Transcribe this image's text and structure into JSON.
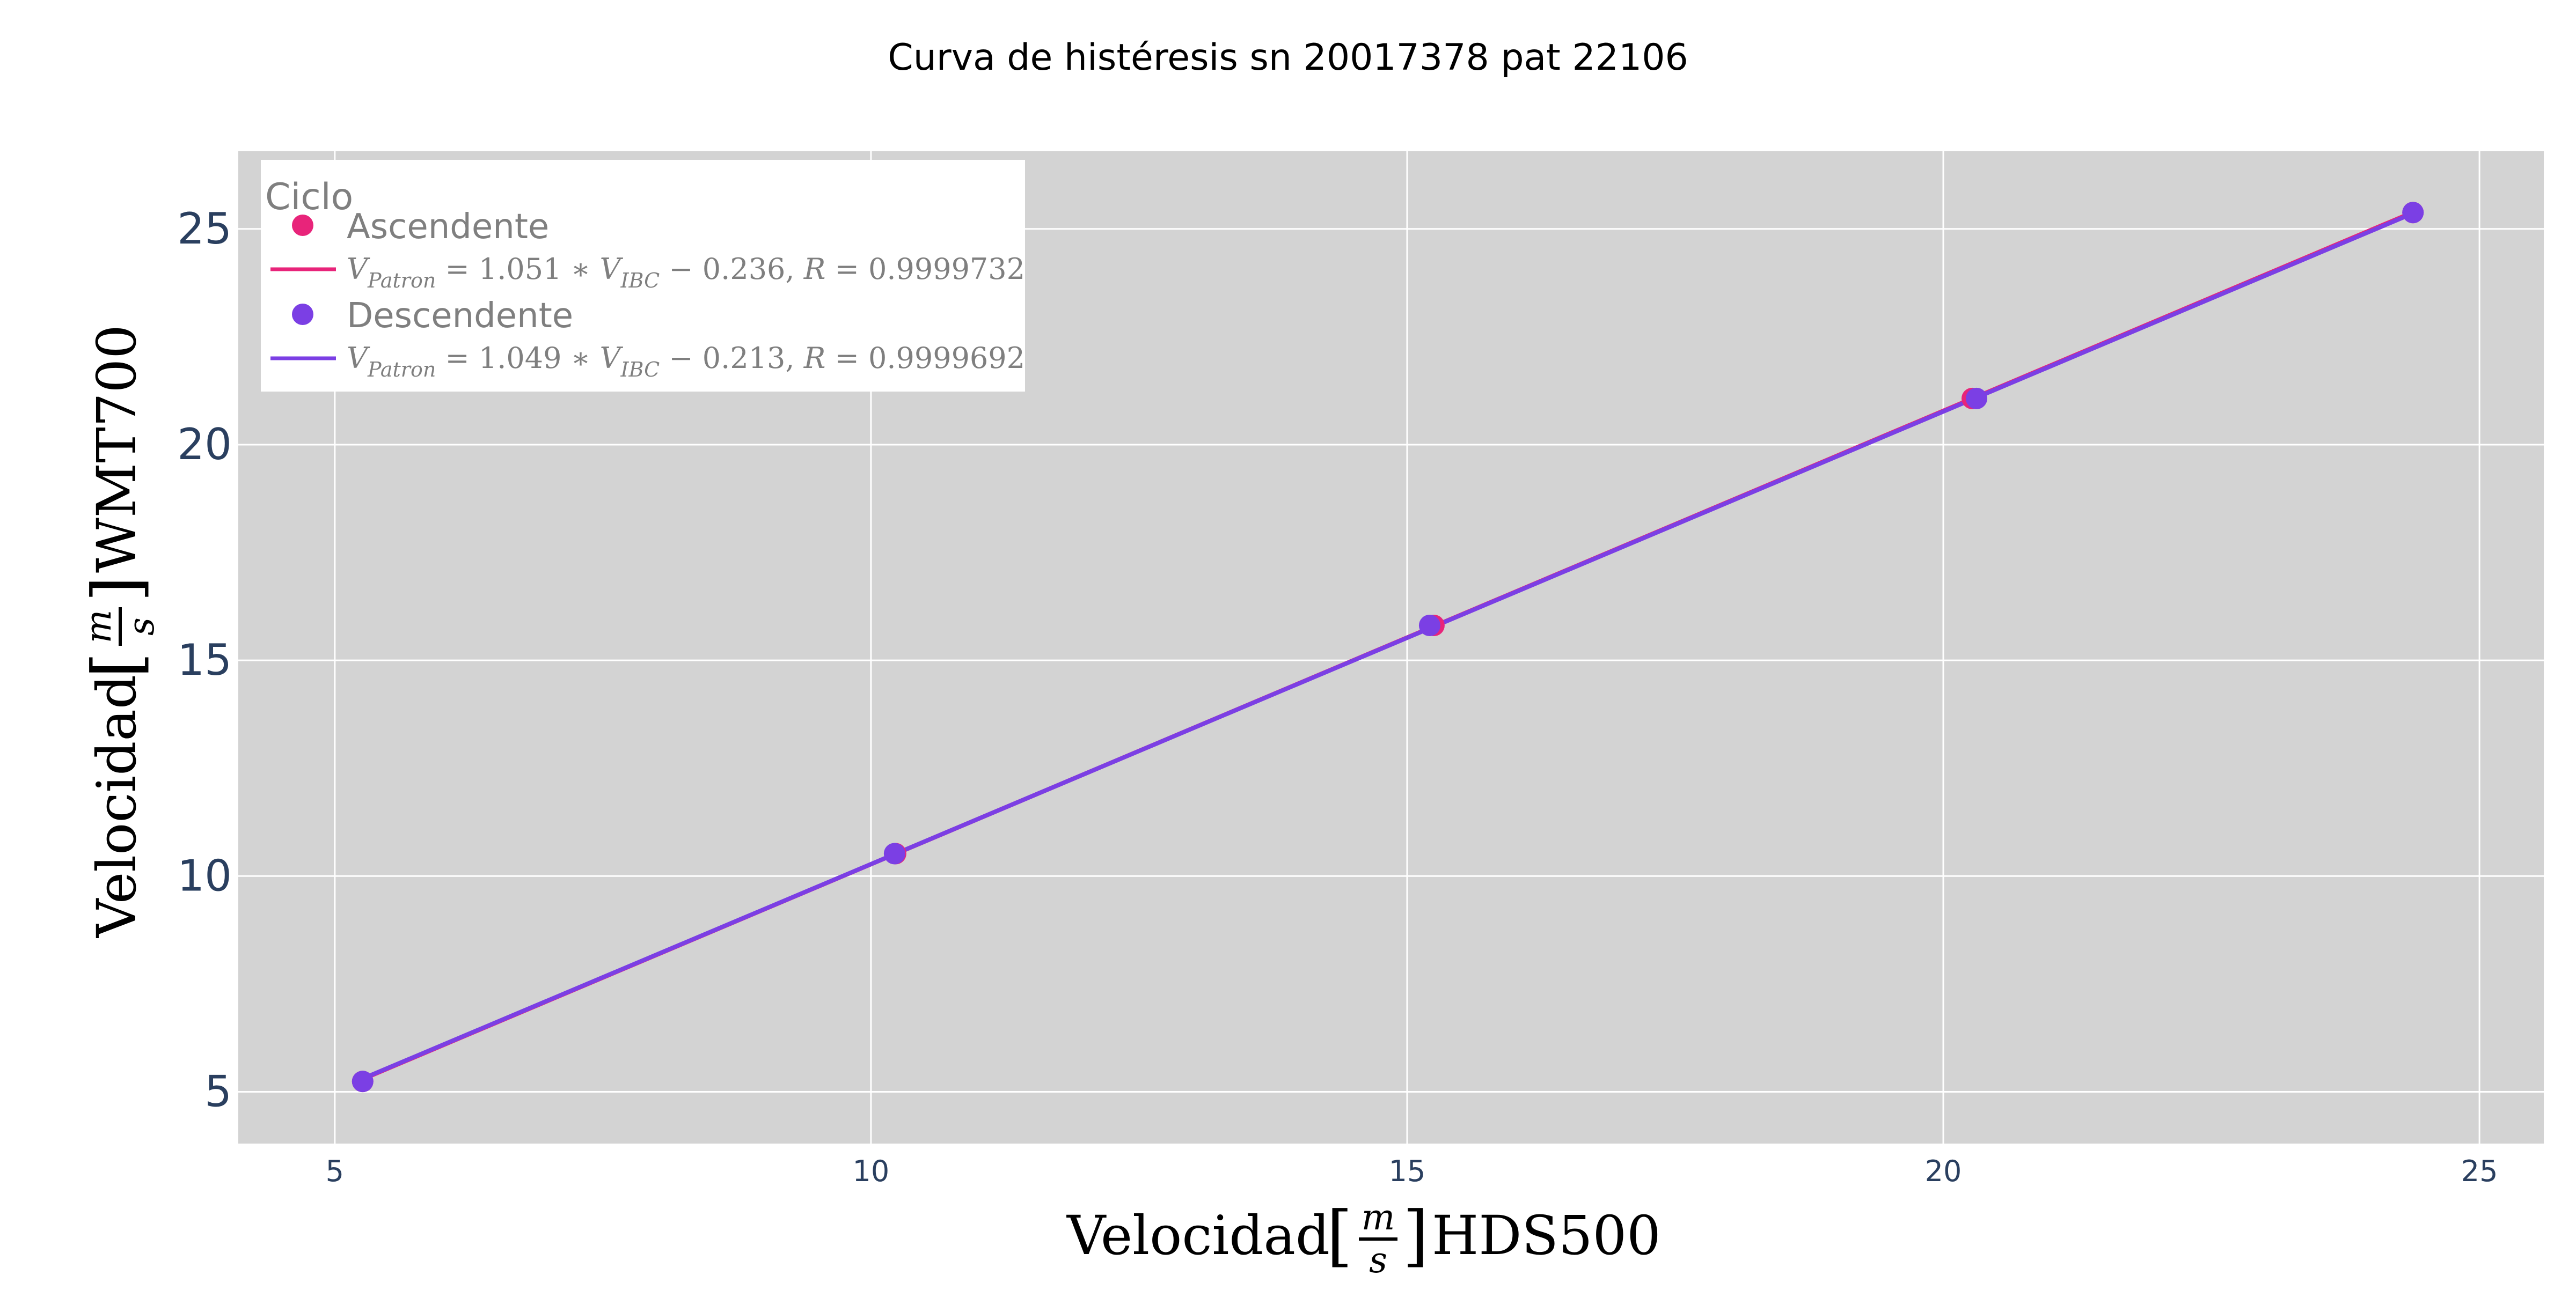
{
  "chart_data": {
    "type": "scatter",
    "title": "Curva de histéresis sn 20017378 pat 22106",
    "xlabel": {
      "prefix": "Velocidad",
      "unit_numerator": "m",
      "unit_denominator": "s",
      "suffix": "HDS500"
    },
    "ylabel": {
      "prefix": "Velocidad",
      "unit_numerator": "m",
      "unit_denominator": "s",
      "suffix": "WMT700"
    },
    "xlim": [
      4.1,
      25.6
    ],
    "ylim": [
      3.8,
      26.8
    ],
    "x_ticks": [
      5,
      10,
      15,
      20,
      25
    ],
    "y_ticks": [
      5,
      10,
      15,
      20,
      25
    ],
    "grid": true,
    "plot_background": "#d3d3d3",
    "legend": {
      "title": "Ciclo",
      "placement": "top-left"
    },
    "series": [
      {
        "name": "Ascendente",
        "color": "#e8247a",
        "x": [
          5.26,
          10.23,
          15.25,
          20.27,
          24.38
        ],
        "y": [
          5.24,
          10.52,
          15.81,
          21.07,
          25.38
        ],
        "fit": {
          "label": "V_{Patron} = 1.051 * V_{IBC} - 0.236, R = 0.9999732",
          "slope": 1.051,
          "intercept": -0.236,
          "R": 0.9999732
        }
      },
      {
        "name": "Descendente",
        "color": "#7b3fe4",
        "x": [
          5.26,
          10.22,
          15.21,
          20.31,
          24.38
        ],
        "y": [
          5.24,
          10.52,
          15.81,
          21.07,
          25.38
        ],
        "fit": {
          "label": "V_{Patron} = 1.049 * V_{IBC} - 0.213, R = 0.9999692",
          "slope": 1.049,
          "intercept": -0.213,
          "R": 0.9999692
        }
      }
    ]
  }
}
